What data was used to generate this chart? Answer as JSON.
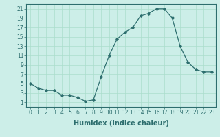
{
  "x": [
    0,
    1,
    2,
    3,
    4,
    5,
    6,
    7,
    8,
    9,
    10,
    11,
    12,
    13,
    14,
    15,
    16,
    17,
    18,
    19,
    20,
    21,
    22,
    23
  ],
  "y": [
    5,
    4,
    3.5,
    3.5,
    2.5,
    2.5,
    2,
    1.2,
    1.5,
    6.5,
    11,
    14.5,
    16,
    17,
    19.5,
    20,
    21,
    21,
    19,
    13,
    9.5,
    8,
    7.5,
    7.5
  ],
  "line_color": "#2d6e6e",
  "marker": "D",
  "marker_size": 1.8,
  "bg_color": "#cceee8",
  "grid_color": "#aaddcc",
  "xlabel": "Humidex (Indice chaleur)",
  "ylim": [
    0,
    22
  ],
  "xlim": [
    -0.5,
    23.5
  ],
  "yticks": [
    1,
    3,
    5,
    7,
    9,
    11,
    13,
    15,
    17,
    19,
    21
  ],
  "xticks": [
    0,
    1,
    2,
    3,
    4,
    5,
    6,
    7,
    8,
    9,
    10,
    11,
    12,
    13,
    14,
    15,
    16,
    17,
    18,
    19,
    20,
    21,
    22,
    23
  ],
  "tick_color": "#2d6e6e",
  "axes_color": "#2d6e6e",
  "xlabel_fontsize": 7,
  "tick_fontsize": 5.5,
  "linewidth": 0.9
}
